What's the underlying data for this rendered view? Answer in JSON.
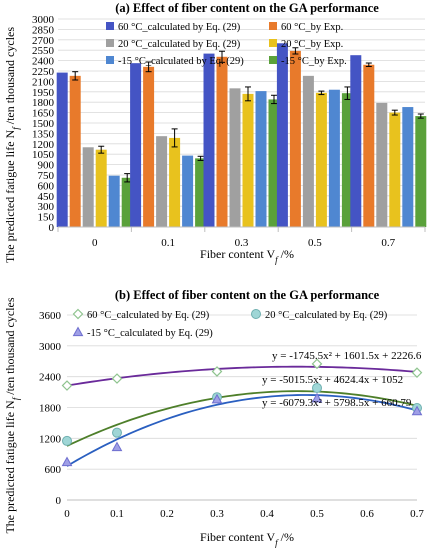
{
  "chart_data": [
    {
      "type": "bar",
      "title": "(a) Effect of  fiber content on the GA performance",
      "xlabel": "Fiber content V",
      "xlabel_sub": "f",
      "xlabel_suffix": " /%",
      "ylabel": "The predicted fatigue life N",
      "ylabel_sub": "f",
      "ylabel_suffix": " /ten thousand cycles",
      "ylim": [
        0,
        3000
      ],
      "yticks": [
        0,
        150,
        300,
        450,
        600,
        750,
        900,
        1050,
        1200,
        1350,
        1500,
        1650,
        1800,
        1950,
        2100,
        2250,
        2400,
        2550,
        2700,
        2850,
        3000
      ],
      "categories": [
        "0",
        "0.1",
        "0.3",
        "0.5",
        "0.7"
      ],
      "legend_position": "top",
      "series": [
        {
          "name": "60 °C_calculated by Eq. (29)",
          "color": "#4454c4",
          "values": [
            2227,
            2363,
            2501,
            2650,
            2478
          ],
          "errors": [
            0,
            0,
            0,
            0,
            0
          ]
        },
        {
          "name": "60 °C_by Exp.",
          "color": "#e87a2b",
          "values": [
            2180,
            2310,
            2455,
            2540,
            2340
          ],
          "errors": [
            60,
            70,
            80,
            45,
            25
          ]
        },
        {
          "name": "20 °C_calculated by Eq. (29)",
          "color": "#a0a0a0",
          "values": [
            1150,
            1310,
            2000,
            2180,
            1790
          ],
          "errors": [
            0,
            0,
            0,
            0,
            0
          ]
        },
        {
          "name": "20 °C_by Exp.",
          "color": "#e8c21e",
          "values": [
            1115,
            1285,
            1920,
            1935,
            1650
          ],
          "errors": [
            50,
            130,
            100,
            25,
            35
          ]
        },
        {
          "name": "-15 °C_calculated by Eq. (29)",
          "color": "#4f87d1",
          "values": [
            740,
            1030,
            1960,
            1980,
            1730
          ],
          "errors": [
            0,
            0,
            0,
            0,
            0
          ]
        },
        {
          "name": "-15 °C_by Exp.",
          "color": "#5aa13a",
          "values": [
            710,
            990,
            1840,
            1930,
            1600
          ],
          "errors": [
            60,
            30,
            60,
            90,
            30
          ]
        }
      ]
    },
    {
      "type": "scatter",
      "title": "(b) Effect of  fiber content on the GA performance",
      "xlabel": "Fiber content V",
      "xlabel_sub": "f",
      "xlabel_suffix": " /%",
      "ylabel": "The predicted fatigue life N",
      "ylabel_sub": "f",
      "ylabel_suffix": " /ten thousand cycles",
      "xlim": [
        0,
        0.7
      ],
      "ylim": [
        0,
        3600
      ],
      "xticks": [
        "0",
        "0.1",
        "0.2",
        "0.3",
        "0.4",
        "0.5",
        "0.6",
        "0.7"
      ],
      "yticks": [
        0,
        600,
        1200,
        1800,
        2400,
        3000,
        3600
      ],
      "series": [
        {
          "name": "60 °C_calculated by Eq. (29)",
          "marker": "diamond",
          "color": "#7f7fd6",
          "line_color": "#6a2a9a",
          "x": [
            0,
            0.1,
            0.3,
            0.5,
            0.7
          ],
          "y": [
            2227,
            2363,
            2501,
            2650,
            2478
          ],
          "fit": [
            -1745.5,
            1601.5,
            2226.6
          ],
          "equation": "y = -1745.5x² + 1601.5x + 2226.6"
        },
        {
          "name": "20 °C_calculated by Eq. (29)",
          "marker": "circle",
          "color": "#9fd6d6",
          "line_color": "#4e7f2a",
          "x": [
            0,
            0.1,
            0.3,
            0.5,
            0.7
          ],
          "y": [
            1150,
            1310,
            2000,
            2180,
            1790
          ],
          "fit": [
            -5015.5,
            4624.4,
            1052
          ],
          "equation": "y = -5015.5x² + 4624.4x + 1052"
        },
        {
          "name": "-15 °C_calculated by Eq. (29)",
          "marker": "triangle",
          "color": "#9f9fe6",
          "line_color": "#2a5fc0",
          "x": [
            0,
            0.1,
            0.3,
            0.5,
            0.7
          ],
          "y": [
            740,
            1030,
            1960,
            1980,
            1730
          ],
          "fit": [
            -6079.3,
            5798.5,
            660.79
          ],
          "equation": "y = -6079.3x² + 5798.5x + 660.79"
        }
      ]
    }
  ]
}
